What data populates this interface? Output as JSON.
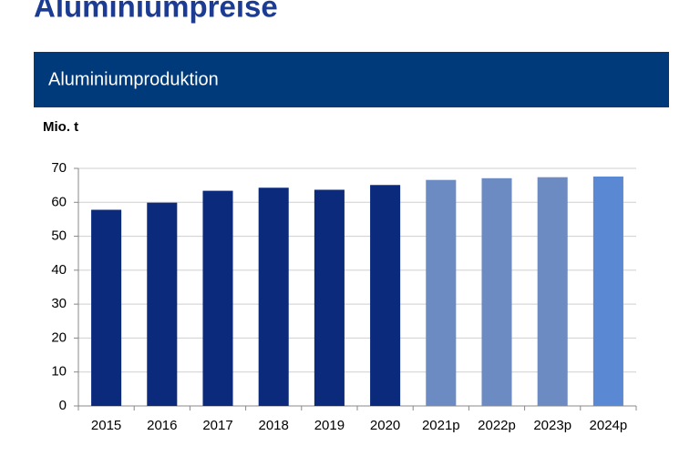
{
  "header": {
    "title": "Aluminiumpreise",
    "section": "Aluminiumproduktion"
  },
  "chart_data": {
    "type": "bar",
    "y_label": "Mio. t",
    "categories": [
      "2015",
      "2016",
      "2017",
      "2018",
      "2019",
      "2020",
      "2021p",
      "2022p",
      "2023p",
      "2024p"
    ],
    "values": [
      57.8,
      59.9,
      63.4,
      64.3,
      63.7,
      65.1,
      66.6,
      67.1,
      67.4,
      67.6
    ],
    "colors": [
      "#0b2a7c",
      "#0b2a7c",
      "#0b2a7c",
      "#0b2a7c",
      "#0b2a7c",
      "#0b2a7c",
      "#6c8bc3",
      "#6c8bc3",
      "#6c8bc3",
      "#5b88d3"
    ],
    "ylim": [
      0,
      70
    ],
    "yticks": [
      0,
      10,
      20,
      30,
      40,
      50,
      60,
      70
    ],
    "grid": true
  }
}
